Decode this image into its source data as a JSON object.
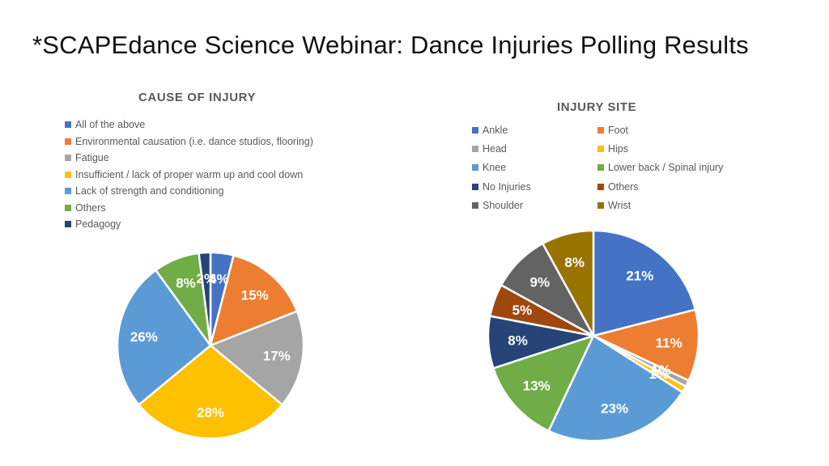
{
  "slide": {
    "title": "*SCAPEdance Science Webinar: Dance Injuries Polling Results"
  },
  "chart_data": [
    {
      "type": "pie",
      "title": "CAUSE OF INJURY",
      "legend_position": "top",
      "slices": [
        {
          "label": "All of the above",
          "value": 4,
          "display": "4%",
          "color": "#4472C4"
        },
        {
          "label": "Environmental causation (i.e. dance studios, flooring)",
          "value": 15,
          "display": "15%",
          "color": "#ED7D31"
        },
        {
          "label": "Fatigue",
          "value": 17,
          "display": "17%",
          "color": "#A5A5A5"
        },
        {
          "label": "Insufficient / lack of proper warm up and cool down",
          "value": 28,
          "display": "28%",
          "color": "#FFC000"
        },
        {
          "label": "Lack of strength and conditioning",
          "value": 26,
          "display": "26%",
          "color": "#5B9BD5"
        },
        {
          "label": "Others",
          "value": 8,
          "display": "8%",
          "color": "#70AD47"
        },
        {
          "label": "Pedagogy",
          "value": 2,
          "display": "2%",
          "color": "#264478"
        }
      ]
    },
    {
      "type": "pie",
      "title": "INJURY SITE",
      "legend_position": "top",
      "slices": [
        {
          "label": "Ankle",
          "value": 21,
          "display": "21%",
          "color": "#4472C4"
        },
        {
          "label": "Foot",
          "value": 11,
          "display": "11%",
          "color": "#ED7D31"
        },
        {
          "label": "Head",
          "value": 1,
          "display": "1%",
          "color": "#A5A5A5"
        },
        {
          "label": "Hips",
          "value": 1,
          "display": "1%",
          "color": "#FFC000"
        },
        {
          "label": "Knee",
          "value": 23,
          "display": "23%",
          "color": "#5B9BD5"
        },
        {
          "label": "Lower back / Spinal injury",
          "value": 13,
          "display": "13%",
          "color": "#70AD47"
        },
        {
          "label": "No Injuries",
          "value": 8,
          "display": "8%",
          "color": "#264478"
        },
        {
          "label": "Others",
          "value": 5,
          "display": "5%",
          "color": "#9E480E"
        },
        {
          "label": "Shoulder",
          "value": 9,
          "display": "9%",
          "color": "#636363"
        },
        {
          "label": "Wrist",
          "value": 8,
          "display": "8%",
          "color": "#997300"
        }
      ]
    }
  ]
}
